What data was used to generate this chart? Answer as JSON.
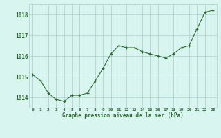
{
  "x": [
    0,
    1,
    2,
    3,
    4,
    5,
    6,
    7,
    8,
    9,
    10,
    11,
    12,
    13,
    14,
    15,
    16,
    17,
    18,
    19,
    20,
    21,
    22,
    23
  ],
  "y": [
    1015.1,
    1014.8,
    1014.2,
    1013.9,
    1013.8,
    1014.1,
    1014.1,
    1014.2,
    1014.8,
    1015.4,
    1016.1,
    1016.5,
    1016.4,
    1016.4,
    1016.2,
    1016.1,
    1016.0,
    1015.9,
    1016.1,
    1016.4,
    1016.5,
    1017.3,
    1018.1,
    1018.2
  ],
  "line_color": "#2d6a2d",
  "marker_color": "#2d6a2d",
  "bg_color": "#d8f5f0",
  "grid_color": "#aacfcf",
  "xlabel": "Graphe pression niveau de la mer (hPa)",
  "xlabel_color": "#2d6a2d",
  "tick_label_color": "#2d6a2d",
  "ylim": [
    1013.5,
    1018.5
  ],
  "yticks": [
    1014,
    1015,
    1016,
    1017,
    1018
  ],
  "xlim": [
    -0.5,
    23.5
  ]
}
